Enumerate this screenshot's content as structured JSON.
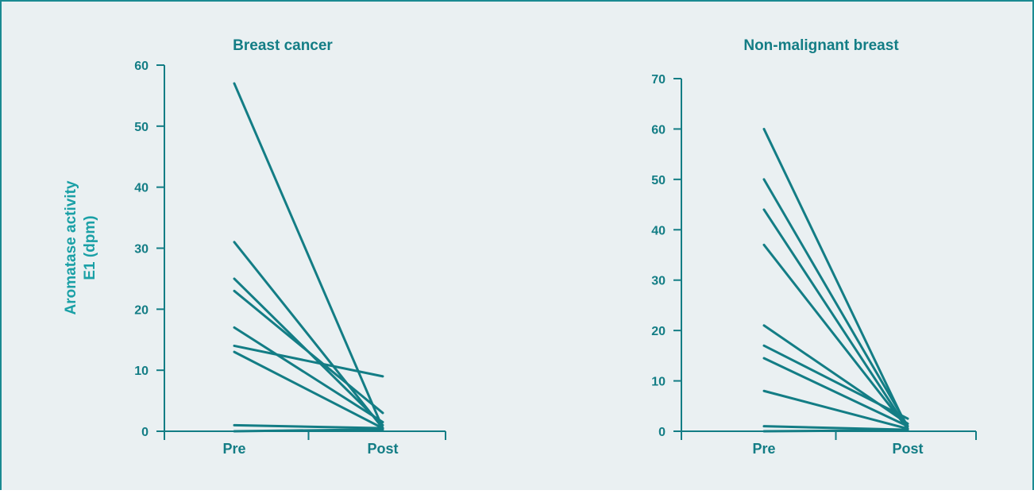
{
  "colors": {
    "background": "#eaf0f2",
    "border": "#1a8a92",
    "ink": "#137d85",
    "label": "#1aa0a6"
  },
  "shared_ylabel_line1": "Aromatase activity",
  "shared_ylabel_line2": "E1 (dpm)",
  "chart_data": [
    {
      "type": "line",
      "title": "Breast cancer",
      "categories": [
        "Pre",
        "Post"
      ],
      "ylim": [
        0,
        60
      ],
      "yticks": [
        0,
        10,
        20,
        30,
        40,
        50,
        60
      ],
      "series": [
        {
          "values": [
            57,
            0.5
          ]
        },
        {
          "values": [
            31,
            0.5
          ]
        },
        {
          "values": [
            25,
            1
          ]
        },
        {
          "values": [
            23,
            3
          ]
        },
        {
          "values": [
            17,
            1.5
          ]
        },
        {
          "values": [
            14,
            9
          ]
        },
        {
          "values": [
            13,
            0.5
          ]
        },
        {
          "values": [
            1,
            0.5
          ]
        },
        {
          "values": [
            0,
            0.3
          ]
        }
      ]
    },
    {
      "type": "line",
      "title": "Non-malignant breast",
      "categories": [
        "Pre",
        "Post"
      ],
      "ylim": [
        0,
        70
      ],
      "yticks": [
        0,
        10,
        20,
        30,
        40,
        50,
        60,
        70
      ],
      "series": [
        {
          "values": [
            60,
            0.5
          ]
        },
        {
          "values": [
            50,
            1
          ]
        },
        {
          "values": [
            44,
            0.5
          ]
        },
        {
          "values": [
            37,
            0.5
          ]
        },
        {
          "values": [
            21,
            1.5
          ]
        },
        {
          "values": [
            17,
            2.5
          ]
        },
        {
          "values": [
            14.5,
            1
          ]
        },
        {
          "values": [
            8,
            0.5
          ]
        },
        {
          "values": [
            1,
            0.3
          ]
        },
        {
          "values": [
            0,
            0.2
          ]
        }
      ]
    }
  ]
}
